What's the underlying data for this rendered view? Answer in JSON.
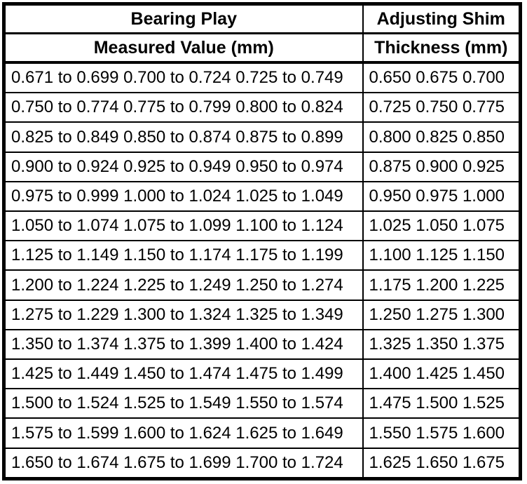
{
  "table": {
    "columns": [
      {
        "title": "Bearing Play",
        "subtitle": "Measured Value (mm)"
      },
      {
        "title": "Adjusting Shim",
        "subtitle": "Thickness (mm)"
      }
    ],
    "rows": [
      {
        "measured": "0.671 to 0.699 0.700 to 0.724 0.725 to 0.749",
        "thickness": "0.650 0.675 0.700"
      },
      {
        "measured": "0.750 to 0.774 0.775 to 0.799 0.800 to 0.824",
        "thickness": "0.725 0.750 0.775"
      },
      {
        "measured": "0.825 to 0.849 0.850 to 0.874 0.875 to 0.899",
        "thickness": "0.800 0.825 0.850"
      },
      {
        "measured": "0.900 to 0.924 0.925 to 0.949 0.950 to 0.974",
        "thickness": "0.875 0.900 0.925"
      },
      {
        "measured": "0.975 to 0.999 1.000 to 1.024 1.025 to 1.049",
        "thickness": "0.950 0.975 1.000"
      },
      {
        "measured": "1.050 to 1.074 1.075 to 1.099 1.100 to 1.124",
        "thickness": "1.025 1.050 1.075"
      },
      {
        "measured": "1.125 to 1.149 1.150 to 1.174 1.175 to 1.199",
        "thickness": "1.100 1.125 1.150"
      },
      {
        "measured": "1.200 to 1.224 1.225 to 1.249 1.250 to 1.274",
        "thickness": "1.175 1.200 1.225"
      },
      {
        "measured": "1.275 to 1.229 1.300 to 1.324 1.325 to 1.349",
        "thickness": "1.250 1.275 1.300"
      },
      {
        "measured": "1.350 to 1.374 1.375 to 1.399 1.400 to 1.424",
        "thickness": "1.325 1.350 1.375"
      },
      {
        "measured": "1.425 to 1.449 1.450 to 1.474 1.475 to 1.499",
        "thickness": "1.400 1.425 1.450"
      },
      {
        "measured": "1.500 to 1.524 1.525 to 1.549 1.550 to 1.574",
        "thickness": "1.475 1.500 1.525"
      },
      {
        "measured": "1.575 to 1.599 1.600 to 1.624 1.625 to 1.649",
        "thickness": "1.550 1.575 1.600"
      },
      {
        "measured": "1.650 to 1.674 1.675 to 1.699 1.700 to 1.724",
        "thickness": "1.625 1.650 1.675"
      }
    ],
    "colors": {
      "border": "#000000",
      "background": "#ffffff",
      "text": "#000000"
    }
  }
}
